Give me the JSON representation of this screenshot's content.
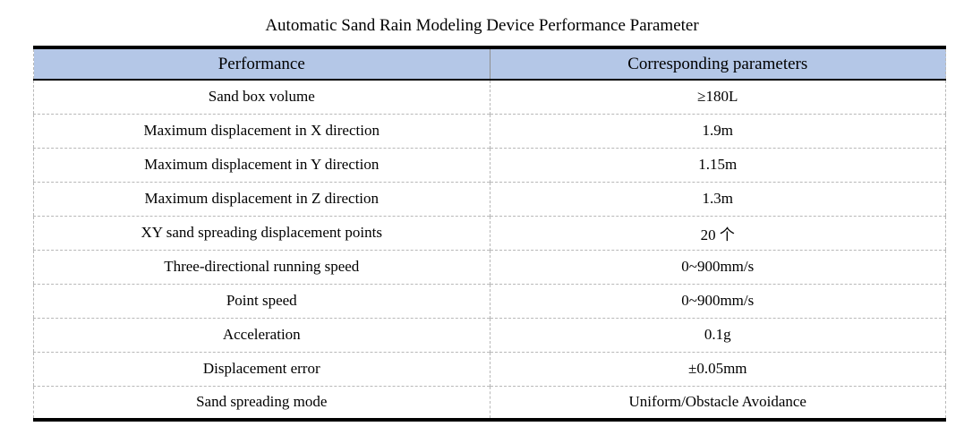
{
  "title": "Automatic Sand Rain Modeling Device Performance Parameter",
  "table": {
    "headers": [
      "Performance",
      "Corresponding parameters"
    ],
    "rows": [
      [
        "Sand box volume",
        "≥180L"
      ],
      [
        "Maximum displacement in X direction",
        "1.9m"
      ],
      [
        "Maximum displacement in Y direction",
        "1.15m"
      ],
      [
        "Maximum displacement in Z direction",
        "1.3m"
      ],
      [
        "XY sand spreading displacement points",
        "20 个"
      ],
      [
        "Three-directional running speed",
        "0~900mm/s"
      ],
      [
        "Point speed",
        "0~900mm/s"
      ],
      [
        "Acceleration",
        "0.1g"
      ],
      [
        "Displacement error",
        "±0.05mm"
      ],
      [
        "Sand spreading mode",
        "Uniform/Obstacle Avoidance"
      ]
    ],
    "colors": {
      "header_bg": "#b4c7e7",
      "strong_border": "#000000",
      "light_border": "#b8b8b8"
    }
  }
}
